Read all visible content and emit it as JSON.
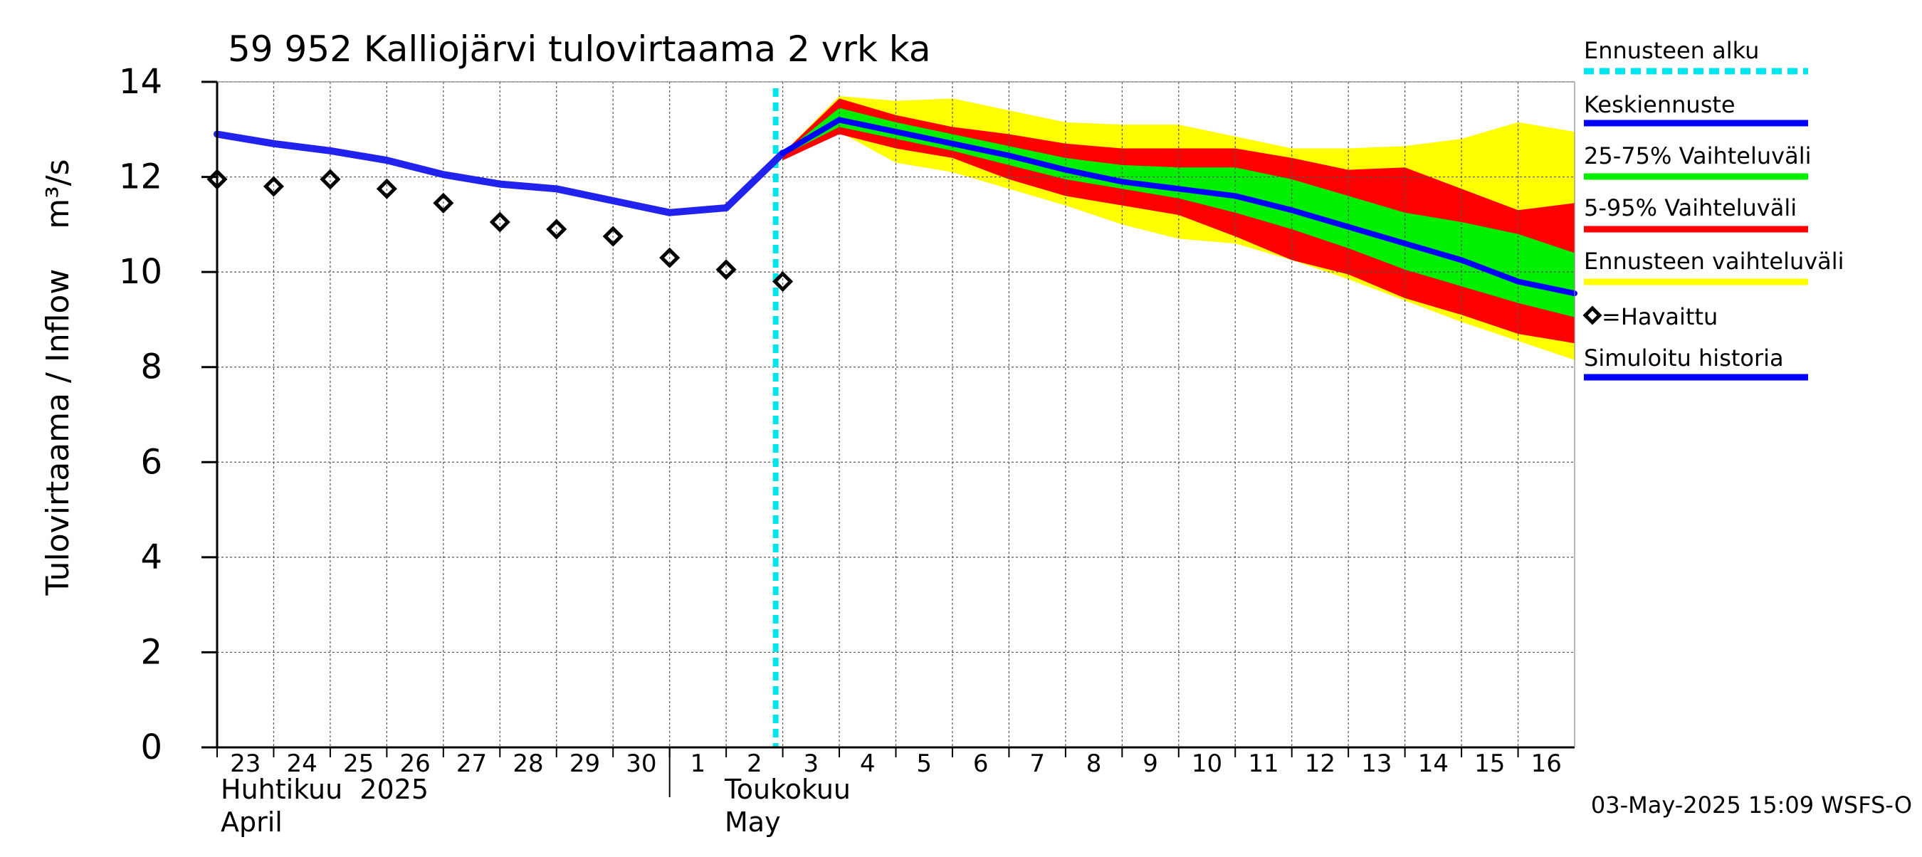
{
  "chart_data": {
    "type": "line",
    "title": "59 952 Kalliojärvi tulovirtaama 2 vrk ka",
    "ylabel": "Tulovirtaama / Inflow    m³/s",
    "ylim": [
      0,
      14
    ],
    "y_ticks": [
      0,
      2,
      4,
      6,
      8,
      10,
      12,
      14
    ],
    "grid": true,
    "x_tick_labels": [
      "23",
      "24",
      "25",
      "26",
      "27",
      "28",
      "29",
      "30",
      "1",
      "2",
      "3",
      "4",
      "5",
      "6",
      "7",
      "8",
      "9",
      "10",
      "11",
      "12",
      "13",
      "14",
      "15",
      "16"
    ],
    "month_labels": [
      {
        "line1": "Huhtikuu  2025",
        "line2": "April"
      },
      {
        "line1": "Toukokuu",
        "line2": "May"
      }
    ],
    "forecast_start_label": "Ennusteen alku",
    "forecast_start_x": "2025-05-02T21:00",
    "legend_placement": "right",
    "legend": [
      {
        "label": "Ennusteen alku",
        "color": "#00e5ee",
        "style": "dashed"
      },
      {
        "label": "Keskiennuste",
        "color": "#0000ff",
        "style": "solid"
      },
      {
        "label": "25-75% Vaihteluväli",
        "color": "#00ee00",
        "style": "band"
      },
      {
        "label": "5-95% Vaihteluväli",
        "color": "#ff0000",
        "style": "band"
      },
      {
        "label": "Ennusteen vaihteluväli",
        "color": "#ffff00",
        "style": "band"
      },
      {
        "label": "=Havaittu",
        "color": "#000000",
        "style": "marker"
      },
      {
        "label": "Simuloitu historia",
        "color": "#0000ff",
        "style": "solid"
      }
    ],
    "series": [
      {
        "name": "Simuloitu historia",
        "color": "#2222ee",
        "x": [
          "2025-04-23",
          "2025-04-24",
          "2025-04-25",
          "2025-04-26",
          "2025-04-27",
          "2025-04-28",
          "2025-04-29",
          "2025-04-30",
          "2025-05-01",
          "2025-05-02",
          "2025-05-03"
        ],
        "values": [
          12.9,
          12.7,
          12.55,
          12.35,
          12.05,
          11.85,
          11.75,
          11.5,
          11.25,
          11.35,
          12.5
        ]
      },
      {
        "name": "Havaittu",
        "color": "#000000",
        "x": [
          "2025-04-23",
          "2025-04-24",
          "2025-04-25",
          "2025-04-26",
          "2025-04-27",
          "2025-04-28",
          "2025-04-29",
          "2025-04-30",
          "2025-05-01",
          "2025-05-02",
          "2025-05-03"
        ],
        "values": [
          11.95,
          11.8,
          11.95,
          11.75,
          11.45,
          11.05,
          10.9,
          10.75,
          10.3,
          10.05,
          9.8
        ]
      },
      {
        "name": "Keskiennuste",
        "color": "#0000ff",
        "x": [
          "2025-05-03",
          "2025-05-04",
          "2025-05-05",
          "2025-05-06",
          "2025-05-07",
          "2025-05-08",
          "2025-05-09",
          "2025-05-10",
          "2025-05-11",
          "2025-05-12",
          "2025-05-13",
          "2025-05-14",
          "2025-05-15",
          "2025-05-16",
          "2025-05-17"
        ],
        "values": [
          12.5,
          13.2,
          12.95,
          12.7,
          12.45,
          12.15,
          11.9,
          11.75,
          11.6,
          11.3,
          10.95,
          10.6,
          10.25,
          9.8,
          9.55
        ]
      },
      {
        "name": "Ennusteen vaihteluväli",
        "color": "#ffff00",
        "x": [
          "2025-05-03",
          "2025-05-04",
          "2025-05-05",
          "2025-05-06",
          "2025-05-07",
          "2025-05-08",
          "2025-05-09",
          "2025-05-10",
          "2025-05-11",
          "2025-05-12",
          "2025-05-13",
          "2025-05-14",
          "2025-05-15",
          "2025-05-16",
          "2025-05-17"
        ],
        "upper": [
          12.5,
          13.7,
          13.6,
          13.65,
          13.4,
          13.15,
          13.1,
          13.1,
          12.85,
          12.6,
          12.6,
          12.65,
          12.8,
          13.15,
          12.95
        ],
        "lower": [
          12.4,
          12.95,
          12.3,
          12.1,
          11.75,
          11.4,
          11.0,
          10.7,
          10.6,
          10.25,
          9.85,
          9.4,
          8.95,
          8.55,
          8.15
        ]
      },
      {
        "name": "5-95% Vaihteluväli",
        "color": "#ff0000",
        "x": [
          "2025-05-03",
          "2025-05-04",
          "2025-05-05",
          "2025-05-06",
          "2025-05-07",
          "2025-05-08",
          "2025-05-09",
          "2025-05-10",
          "2025-05-11",
          "2025-05-12",
          "2025-05-13",
          "2025-05-14",
          "2025-05-15",
          "2025-05-16",
          "2025-05-17"
        ],
        "upper": [
          12.5,
          13.65,
          13.3,
          13.05,
          12.9,
          12.7,
          12.6,
          12.6,
          12.6,
          12.4,
          12.15,
          12.2,
          11.75,
          11.3,
          11.45
        ],
        "lower": [
          12.35,
          12.9,
          12.6,
          12.4,
          11.95,
          11.6,
          11.4,
          11.2,
          10.75,
          10.25,
          9.95,
          9.45,
          9.1,
          8.7,
          8.5
        ]
      },
      {
        "name": "25-75% Vaihteluväli",
        "color": "#00ee00",
        "x": [
          "2025-05-03",
          "2025-05-04",
          "2025-05-05",
          "2025-05-06",
          "2025-05-07",
          "2025-05-08",
          "2025-05-09",
          "2025-05-10",
          "2025-05-11",
          "2025-05-12",
          "2025-05-13",
          "2025-05-14",
          "2025-05-15",
          "2025-05-16",
          "2025-05-17"
        ],
        "upper": [
          12.5,
          13.45,
          13.15,
          12.9,
          12.65,
          12.4,
          12.25,
          12.2,
          12.2,
          11.95,
          11.6,
          11.25,
          11.05,
          10.8,
          10.4
        ],
        "lower": [
          12.45,
          13.05,
          12.8,
          12.55,
          12.25,
          11.95,
          11.75,
          11.55,
          11.25,
          10.9,
          10.5,
          10.05,
          9.7,
          9.35,
          9.05
        ]
      }
    ],
    "footer": "03-May-2025 15:09 WSFS-O"
  }
}
